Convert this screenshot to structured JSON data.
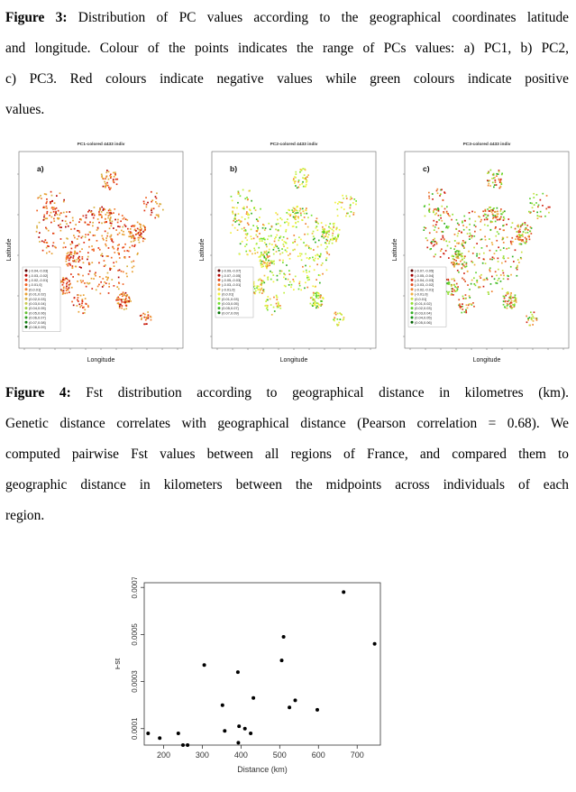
{
  "figure3": {
    "label": "Figure 3:",
    "lines": [
      " Distribution of PC values according to the geographical coordinates latitude",
      "and longitude. Colour of the points indicates the range of PCs values:  a) PC1, b) PC2,",
      "c) PC3. Red colours indicate negative values while green colours indicate positive",
      "values."
    ]
  },
  "figure4": {
    "label": "Figure 4:",
    "lines": [
      " Fst distribution according to geographical distance in kilometres (km).",
      "Genetic distance correlates with geographical distance (Pearson correlation = 0.68). We",
      "computed pairwise Fst values between all regions of France, and compared them to",
      "geographic distance in kilometers between the midpoints across individuals of each",
      "region."
    ]
  },
  "map_panels": [
    {
      "title": "PC1-colored 4433 indiv",
      "letter": "a)",
      "xlabel": "Longitude",
      "ylabel": "Latitude",
      "legend": [
        "(-0.04,-0.03]",
        "(-0.03,-0.02]",
        "(-0.02,-0.01]",
        "(-0.01,0]",
        "(0,0.01]",
        "(0.01,0.02]",
        "(0.02,0.03]",
        "(0.03,0.04]",
        "(0.04,0.05]",
        "(0.05,0.06]",
        "(0.06,0.07]",
        "(0.07,0.08]",
        "(0.08,0.09]"
      ],
      "legend_colors": [
        "#5a0000",
        "#b00000",
        "#e03010",
        "#f06020",
        "#f08030",
        "#e8a030",
        "#d8b040",
        "#c8c850",
        "#a0d040",
        "#60c030",
        "#30a020",
        "#108010",
        "#005000"
      ]
    },
    {
      "title": "PC2-colored 4433 indiv",
      "letter": "b)",
      "xlabel": "Longitude",
      "ylabel": "Latitude",
      "legend": [
        "(-0.09,-0.07]",
        "(-0.07,-0.05]",
        "(-0.05,-0.03]",
        "(-0.03,-0.01]",
        "(-0.01,0]",
        "(0,0.01]",
        "(0.01,0.03]",
        "(0.03,0.05]",
        "(0.05,0.07]",
        "(0.07,0.09]"
      ],
      "legend_colors": [
        "#5a0000",
        "#b00000",
        "#e04010",
        "#f08030",
        "#f0c040",
        "#f0f040",
        "#c0f040",
        "#70e030",
        "#30b020",
        "#007000"
      ]
    },
    {
      "title": "PC3-colored 4433 indiv",
      "letter": "c)",
      "xlabel": "Longitude",
      "ylabel": "Latitude",
      "legend": [
        "(-0.07,-0.05]",
        "(-0.05,-0.04]",
        "(-0.04,-0.03]",
        "(-0.03,-0.02]",
        "(-0.02,-0.01]",
        "(-0.01,0]",
        "(0,0.01]",
        "(0.01,0.02]",
        "(0.02,0.03]",
        "(0.03,0.04]",
        "(0.04,0.05]",
        "(0.05,0.06]"
      ],
      "legend_colors": [
        "#5a0000",
        "#a00000",
        "#d02010",
        "#e05020",
        "#f08030",
        "#f0b040",
        "#c8e040",
        "#90e030",
        "#60d030",
        "#30b020",
        "#109010",
        "#006000"
      ]
    }
  ],
  "chart_data": {
    "type": "scatter",
    "title": "",
    "xlabel": "Distance (km)",
    "ylabel": "Fst",
    "xlim": [
      150,
      760
    ],
    "ylim": [
      3e-05,
      0.00072
    ],
    "xticks": [
      200,
      300,
      400,
      500,
      600,
      700
    ],
    "yticks": [
      0.0001,
      0.0003,
      0.0005,
      0.0007
    ],
    "ytick_labels": [
      "0.0001",
      "0.0003",
      "0.0005",
      "0.0007"
    ],
    "points": [
      [
        160,
        8e-05
      ],
      [
        190,
        6e-05
      ],
      [
        238,
        8e-05
      ],
      [
        250,
        3e-05
      ],
      [
        262,
        3e-05
      ],
      [
        305,
        0.00037
      ],
      [
        352,
        0.0002
      ],
      [
        358,
        9e-05
      ],
      [
        392,
        0.00034
      ],
      [
        395,
        0.00011
      ],
      [
        393,
        4e-05
      ],
      [
        410,
        0.0001
      ],
      [
        425,
        8e-05
      ],
      [
        432,
        0.00023
      ],
      [
        505,
        0.00039
      ],
      [
        510,
        0.00049
      ],
      [
        525,
        0.00019
      ],
      [
        540,
        0.00022
      ],
      [
        597,
        0.00018
      ],
      [
        665,
        0.00068
      ],
      [
        745,
        0.00046
      ]
    ]
  }
}
